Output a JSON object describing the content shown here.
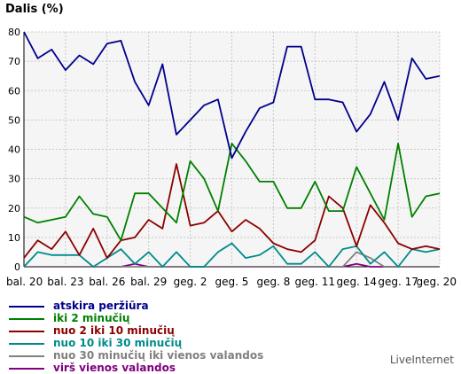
{
  "chart_data": {
    "type": "line",
    "ylabel": "Dalis (%)",
    "ylim": [
      0,
      80
    ],
    "yticks": [
      0,
      10,
      20,
      30,
      40,
      50,
      60,
      70,
      80
    ],
    "grid": true,
    "legend_position": "bottom",
    "categories": [
      "bal. 20",
      "bal. 21",
      "bal. 22",
      "bal. 23",
      "bal. 24",
      "bal. 25",
      "bal. 26",
      "bal. 27",
      "bal. 28",
      "bal. 29",
      "bal. 30",
      "geg. 1",
      "geg. 2",
      "geg. 3",
      "geg. 4",
      "geg. 5",
      "geg. 6",
      "geg. 7",
      "geg. 8",
      "geg. 9",
      "geg. 10",
      "geg. 11",
      "geg. 12",
      "geg. 13",
      "geg. 14",
      "geg. 15",
      "geg. 16",
      "geg. 17",
      "geg. 18",
      "geg. 19",
      "geg. 20"
    ],
    "xtick_labels": [
      "bal. 20",
      "bal. 23",
      "bal. 26",
      "bal. 29",
      "geg. 2",
      "geg. 5",
      "geg. 8",
      "geg. 11",
      "geg. 14",
      "geg. 17",
      "geg. 20"
    ],
    "series": [
      {
        "name": "atskira peržiūra",
        "color": "#00008b",
        "values": [
          80,
          71,
          74,
          67,
          72,
          69,
          76,
          77,
          63,
          55,
          69,
          45,
          50,
          55,
          57,
          37,
          46,
          54,
          56,
          75,
          75,
          57,
          57,
          56,
          46,
          52,
          63,
          50,
          71,
          64,
          65
        ]
      },
      {
        "name": "iki 2 minučių",
        "color": "#008000",
        "values": [
          17,
          15,
          16,
          17,
          24,
          18,
          17,
          9,
          25,
          25,
          20,
          15,
          36,
          30,
          19,
          42,
          36,
          29,
          29,
          20,
          20,
          29,
          19,
          19,
          34,
          25,
          16,
          42,
          17,
          24,
          25
        ]
      },
      {
        "name": "nuo 2 iki 10 minučių",
        "color": "#8b0000",
        "values": [
          3,
          9,
          6,
          12,
          4,
          13,
          3,
          9,
          10,
          16,
          13,
          35,
          14,
          15,
          19,
          12,
          16,
          13,
          8,
          6,
          5,
          9,
          24,
          20,
          7,
          21,
          15,
          8,
          6,
          7,
          6
        ]
      },
      {
        "name": "nuo 10 iki 30 minučių",
        "color": "#008b8b",
        "values": [
          0,
          5,
          4,
          4,
          4,
          0,
          3,
          6,
          1,
          5,
          0,
          5,
          0,
          0,
          5,
          8,
          3,
          4,
          7,
          1,
          1,
          5,
          0,
          6,
          7,
          1,
          5,
          0,
          6,
          5,
          6
        ]
      },
      {
        "name": "nuo 30 minučių iki vienos valandos",
        "color": "#808080",
        "values": [
          0,
          0,
          0,
          0,
          0,
          0,
          0,
          0,
          0,
          0,
          0,
          0,
          0,
          0,
          0,
          0,
          0,
          0,
          0,
          0,
          0,
          0,
          0,
          0,
          5,
          3,
          0,
          0,
          0,
          0,
          0
        ]
      },
      {
        "name": "virš vienos valandos",
        "color": "#800080",
        "values": [
          0,
          0,
          0,
          0,
          0,
          0,
          0,
          0,
          1,
          0,
          0,
          0,
          0,
          0,
          0,
          0,
          0,
          0,
          0,
          0,
          0,
          0,
          0,
          0,
          1,
          0,
          0,
          0,
          0,
          0,
          0
        ]
      }
    ]
  },
  "brand": "LiveInternet"
}
